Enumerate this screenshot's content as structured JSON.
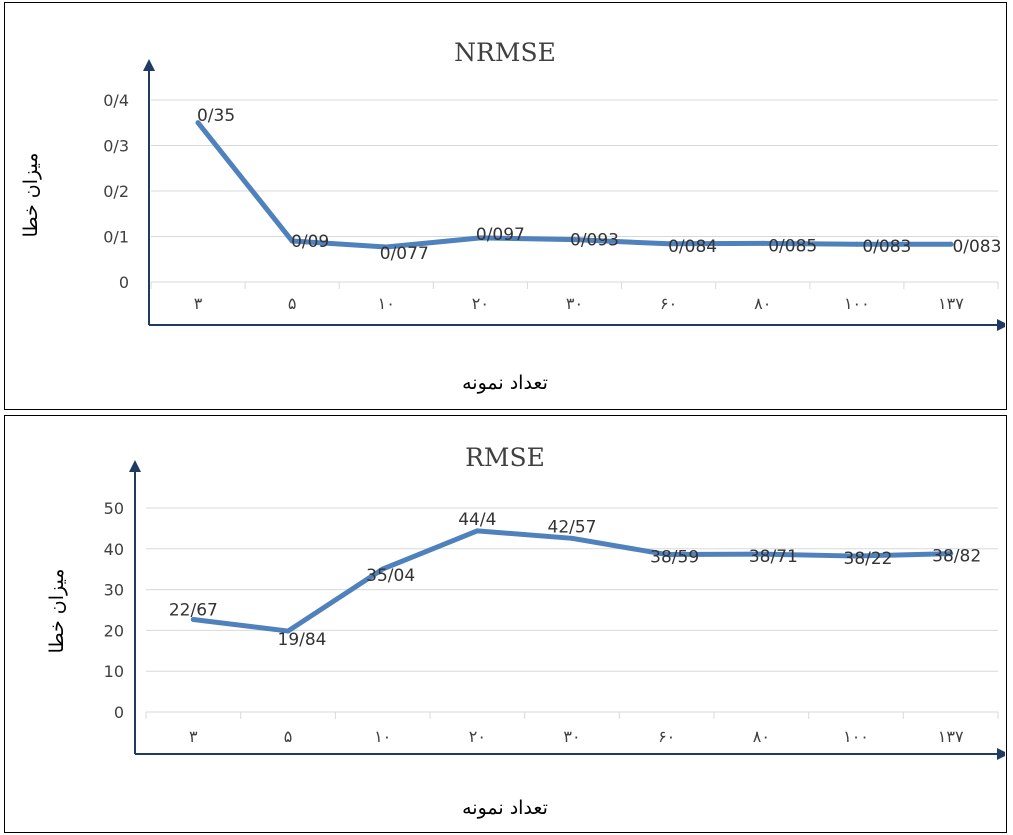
{
  "chart_data": [
    {
      "type": "line",
      "title": "NRMSE",
      "xlabel": "تعداد نمونه",
      "ylabel": "میزان خطا",
      "categories": [
        "۳",
        "۵",
        "۱۰",
        "۲۰",
        "۳۰",
        "۶۰",
        "۸۰",
        "۱۰۰",
        "۱۳۷"
      ],
      "values": [
        0.35,
        0.09,
        0.077,
        0.097,
        0.093,
        0.084,
        0.085,
        0.083,
        0.083
      ],
      "data_labels": [
        "0/35",
        "0/09",
        "0/077",
        "0/097",
        "0/093",
        "0/084",
        "0/085",
        "0/083",
        "0/083"
      ],
      "yticks": [
        0,
        0.1,
        0.2,
        0.3,
        0.4
      ],
      "ytick_labels": [
        "0",
        "0/1",
        "0/2",
        "0/3",
        "0/4"
      ],
      "ylim": [
        0,
        0.4
      ],
      "grid": true,
      "line_color": "#4f81bd",
      "axis_color": "#1f3b63"
    },
    {
      "type": "line",
      "title": "RMSE",
      "xlabel": "تعداد نمونه",
      "ylabel": "میزان خطا",
      "categories": [
        "۳",
        "۵",
        "۱۰",
        "۲۰",
        "۳۰",
        "۶۰",
        "۸۰",
        "۱۰۰",
        "۱۳۷"
      ],
      "values": [
        22.67,
        19.84,
        35.04,
        44.4,
        42.57,
        38.59,
        38.71,
        38.22,
        38.82
      ],
      "data_labels": [
        "22/67",
        "19/84",
        "35/04",
        "44/4",
        "42/57",
        "38/59",
        "38/71",
        "38/22",
        "38/82"
      ],
      "yticks": [
        0,
        10,
        20,
        30,
        40,
        50
      ],
      "ytick_labels": [
        "0",
        "10",
        "20",
        "30",
        "40",
        "50"
      ],
      "ylim": [
        0,
        50
      ],
      "grid": true,
      "line_color": "#4f81bd",
      "axis_color": "#1f3b63"
    }
  ]
}
